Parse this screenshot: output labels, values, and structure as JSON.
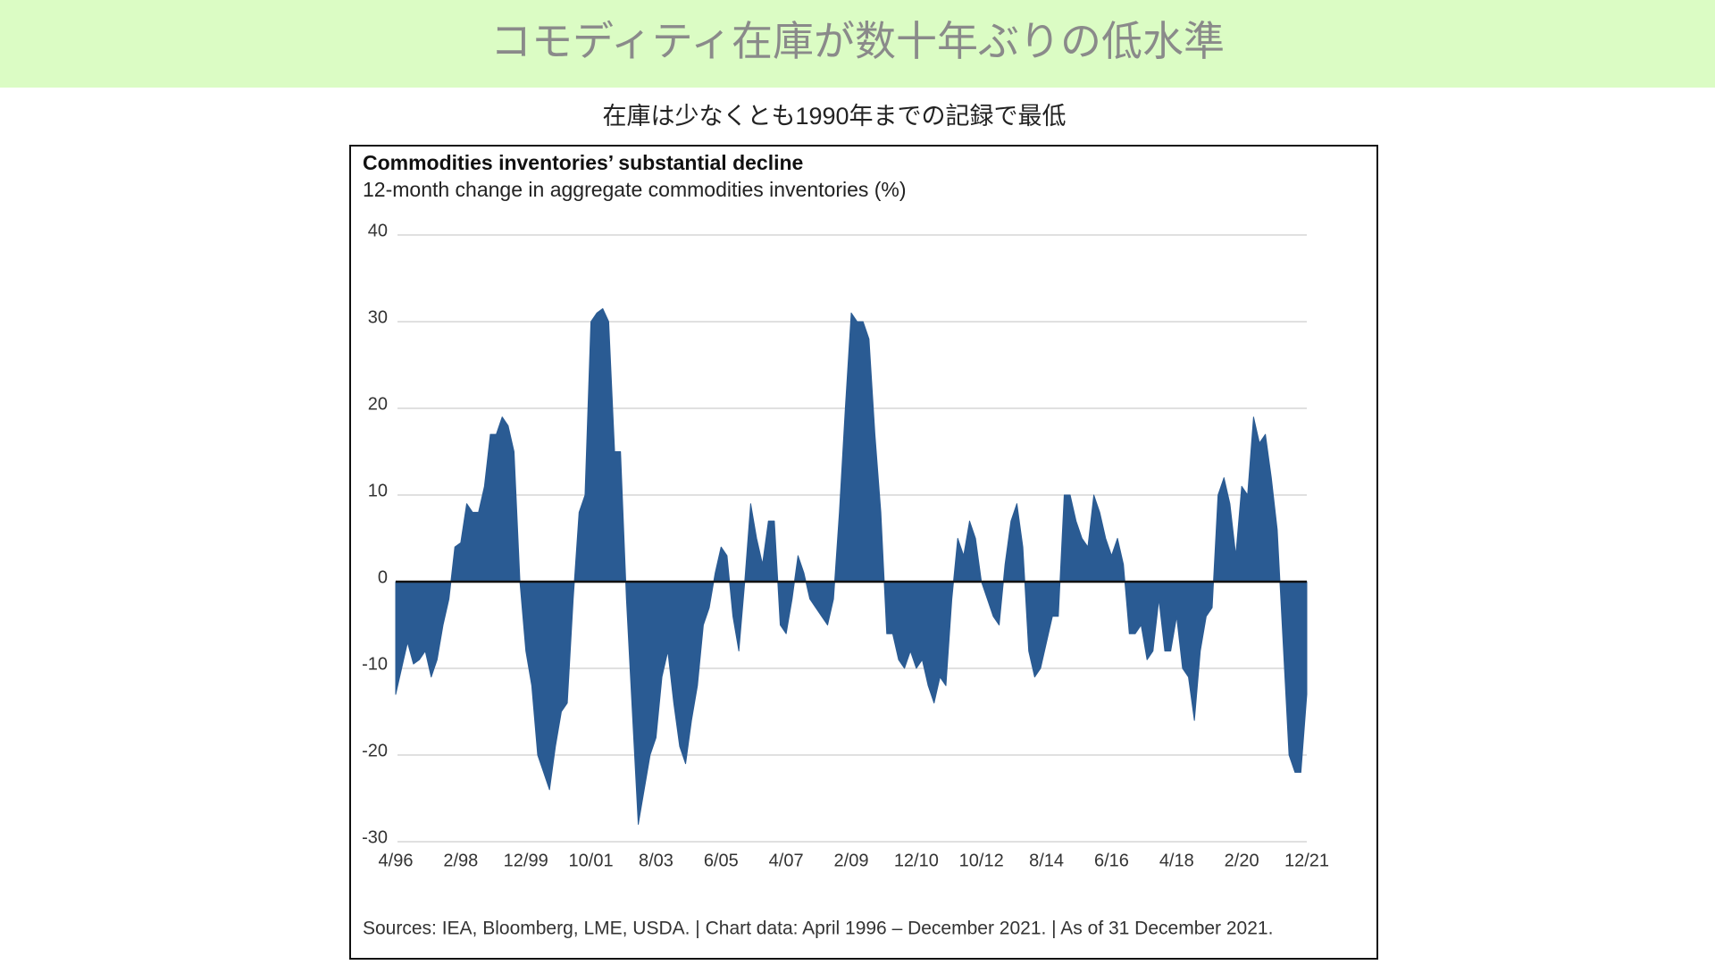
{
  "header": {
    "title": "コモディティ在庫が数十年ぶりの低水準",
    "subtitle": "在庫は少なくとも1990年までの記録で最低"
  },
  "chart_data": {
    "type": "area",
    "title": "Commodities inventories’ substantial decline",
    "subtitle": "12-month change in aggregate commodities inventories (%)",
    "note": "Sources: IEA, Bloomberg, LME, USDA.  |  Chart data: April 1996 – December 2021.  |  As of 31 December 2021.",
    "color": "#2a5b93",
    "ylim": [
      -30,
      40
    ],
    "yticks": [
      -30,
      -20,
      -10,
      0,
      10,
      20,
      30,
      40
    ],
    "grid": true,
    "xticks": [
      "4/96",
      "2/98",
      "12/99",
      "10/01",
      "8/03",
      "6/05",
      "4/07",
      "2/09",
      "12/10",
      "10/12",
      "8/14",
      "6/16",
      "4/18",
      "2/20",
      "12/21"
    ],
    "x": [
      "4/96",
      "6/96",
      "8/96",
      "10/96",
      "12/96",
      "2/97",
      "4/97",
      "6/97",
      "8/97",
      "10/97",
      "12/97",
      "2/98",
      "4/98",
      "6/98",
      "8/98",
      "10/98",
      "12/98",
      "2/99",
      "4/99",
      "6/99",
      "8/99",
      "10/99",
      "12/99",
      "2/00",
      "4/00",
      "6/00",
      "8/00",
      "10/00",
      "12/00",
      "2/01",
      "4/01",
      "6/01",
      "8/01",
      "10/01",
      "12/01",
      "2/02",
      "4/02",
      "6/02",
      "8/02",
      "10/02",
      "12/02",
      "2/03",
      "4/03",
      "6/03",
      "8/03",
      "10/03",
      "12/03",
      "2/04",
      "4/04",
      "6/04",
      "8/04",
      "10/04",
      "12/04",
      "2/05",
      "4/05",
      "6/05",
      "8/05",
      "10/05",
      "12/05",
      "2/06",
      "4/06",
      "6/06",
      "8/06",
      "10/06",
      "12/06",
      "2/07",
      "4/07",
      "6/07",
      "8/07",
      "10/07",
      "12/07",
      "2/08",
      "4/08",
      "6/08",
      "8/08",
      "10/08",
      "12/08",
      "2/09",
      "4/09",
      "6/09",
      "8/09",
      "10/09",
      "12/09",
      "2/10",
      "4/10",
      "6/10",
      "8/10",
      "10/10",
      "12/10",
      "2/11",
      "4/11",
      "6/11",
      "8/11",
      "10/11",
      "12/11",
      "2/12",
      "4/12",
      "6/12",
      "8/12",
      "10/12",
      "12/12",
      "2/13",
      "4/13",
      "6/13",
      "8/13",
      "10/13",
      "12/13",
      "2/14",
      "4/14",
      "6/14",
      "8/14",
      "10/14",
      "12/14",
      "2/15",
      "4/15",
      "6/15",
      "8/15",
      "10/15",
      "12/15",
      "2/16",
      "4/16",
      "6/16",
      "8/16",
      "10/16",
      "12/16",
      "2/17",
      "4/17",
      "6/17",
      "8/17",
      "10/17",
      "12/17",
      "2/18",
      "4/18",
      "6/18",
      "8/18",
      "10/18",
      "12/18",
      "2/19",
      "4/19",
      "6/19",
      "8/19",
      "10/19",
      "12/19",
      "2/20",
      "4/20",
      "6/20",
      "8/20",
      "10/20",
      "12/20",
      "2/21",
      "4/21",
      "6/21",
      "8/21",
      "10/21",
      "12/21"
    ],
    "values": [
      -13,
      -10,
      -7,
      -9.5,
      -9,
      -8,
      -11,
      -9,
      -5,
      -2,
      4,
      4.5,
      9,
      8,
      8,
      11,
      17,
      17,
      19,
      18,
      15,
      0,
      -8,
      -12,
      -20,
      -22,
      -24,
      -19,
      -15,
      -14,
      -2,
      8,
      10,
      30,
      31,
      31.5,
      30,
      15,
      15,
      -2,
      -15,
      -28,
      -24,
      -20,
      -18,
      -11,
      -8,
      -14,
      -19,
      -21,
      -16,
      -12,
      -5,
      -3,
      1,
      4,
      3,
      -4,
      -8,
      0,
      9,
      5,
      2,
      7,
      7,
      -5,
      -6,
      -2,
      3,
      1,
      -2,
      -3,
      -4,
      -5,
      -2,
      8,
      20,
      31,
      30,
      30,
      28,
      17,
      8,
      -6,
      -6,
      -9,
      -10,
      -8,
      -10,
      -9,
      -12,
      -14,
      -11,
      -12,
      -2,
      5,
      3,
      7,
      5,
      0,
      -2,
      -4,
      -5,
      2,
      7,
      9,
      4,
      -8,
      -11,
      -10,
      -7,
      -4,
      -4,
      10,
      10,
      7,
      5,
      4,
      10,
      8,
      5,
      3,
      5,
      2,
      -6,
      -6,
      -5,
      -9,
      -8,
      -2,
      -8,
      -8,
      -4,
      -10,
      -11,
      -16,
      -8,
      -4,
      -3,
      10,
      12,
      9,
      3,
      11,
      10,
      19,
      16,
      17,
      12,
      6,
      -7,
      -20,
      -22,
      -22,
      -13
    ]
  }
}
